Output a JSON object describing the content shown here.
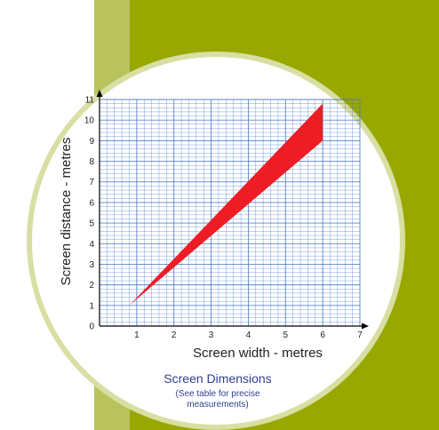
{
  "colors": {
    "band_light": "#b9c35c",
    "band_main": "#98a800",
    "circle_ring": "#d9dea3",
    "grid": "#4a78c8",
    "fill": "#ee1c25",
    "caption": "#2f3f8f"
  },
  "chart_data": {
    "type": "area",
    "xlabel": "Screen width - metres",
    "ylabel": "Screen distance - metres",
    "xlim": [
      0,
      7
    ],
    "ylim": [
      0,
      11
    ],
    "x_ticks": [
      "1",
      "2",
      "3",
      "4",
      "5",
      "6",
      "7"
    ],
    "y_ticks": [
      "0",
      "1",
      "2",
      "3",
      "4",
      "5",
      "6",
      "7",
      "8",
      "9",
      "10",
      "11"
    ],
    "grid": true,
    "series": [
      {
        "upper": [
          [
            0.8,
            1.0
          ],
          [
            6.0,
            10.8
          ]
        ],
        "lower": [
          [
            0.8,
            1.0
          ],
          [
            6.0,
            9.0
          ]
        ]
      }
    ]
  },
  "caption": {
    "title": "Screen Dimensions",
    "note_line1": "(See table for precise",
    "note_line2": "measurements)"
  }
}
